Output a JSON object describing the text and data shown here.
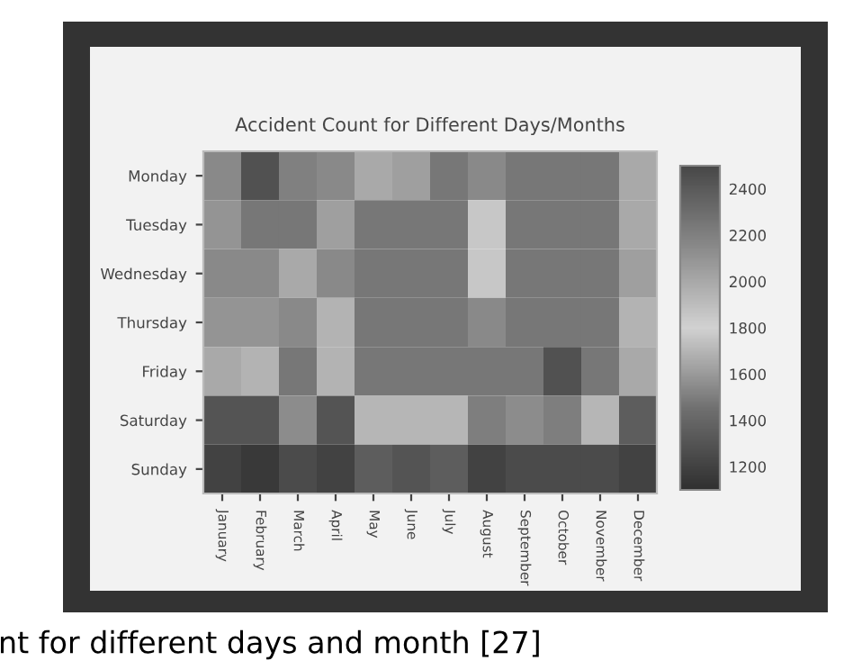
{
  "chart_data": {
    "type": "heatmap",
    "title": "Accident Count for Different Days/Months",
    "categories": [
      "January",
      "February",
      "March",
      "April",
      "May",
      "June",
      "July",
      "August",
      "September",
      "October",
      "November",
      "December"
    ],
    "y_categories": [
      "Monday",
      "Tuesday",
      "Wednesday",
      "Thursday",
      "Friday",
      "Saturday",
      "Sunday"
    ],
    "cells": [
      [
        2150,
        2450,
        2200,
        2150,
        2000,
        2050,
        2250,
        2150,
        2250,
        2250,
        2250,
        2000
      ],
      [
        2100,
        2250,
        2250,
        2050,
        2250,
        2250,
        2250,
        1850,
        2250,
        2250,
        2250,
        2000
      ],
      [
        2150,
        2150,
        2000,
        2150,
        2250,
        2250,
        2250,
        1850,
        2250,
        2250,
        2250,
        2050
      ],
      [
        2100,
        2100,
        2150,
        1950,
        2250,
        2250,
        2250,
        2150,
        2250,
        2250,
        2250,
        1950
      ],
      [
        2000,
        1950,
        2250,
        1950,
        2250,
        2250,
        2250,
        2250,
        2250,
        2450,
        2250,
        2000
      ],
      [
        1300,
        1300,
        1550,
        1300,
        1700,
        1700,
        1700,
        1500,
        1550,
        1500,
        1700,
        1350
      ],
      [
        1200,
        1150,
        1250,
        1200,
        1350,
        1300,
        1350,
        1200,
        1250,
        1250,
        1250,
        1200
      ]
    ],
    "clim": [
      1100,
      2500
    ],
    "cticks": [
      1200,
      1400,
      1600,
      1800,
      2000,
      2200,
      2400
    ],
    "annotations": [
      "nt for different days and month [27]"
    ]
  }
}
